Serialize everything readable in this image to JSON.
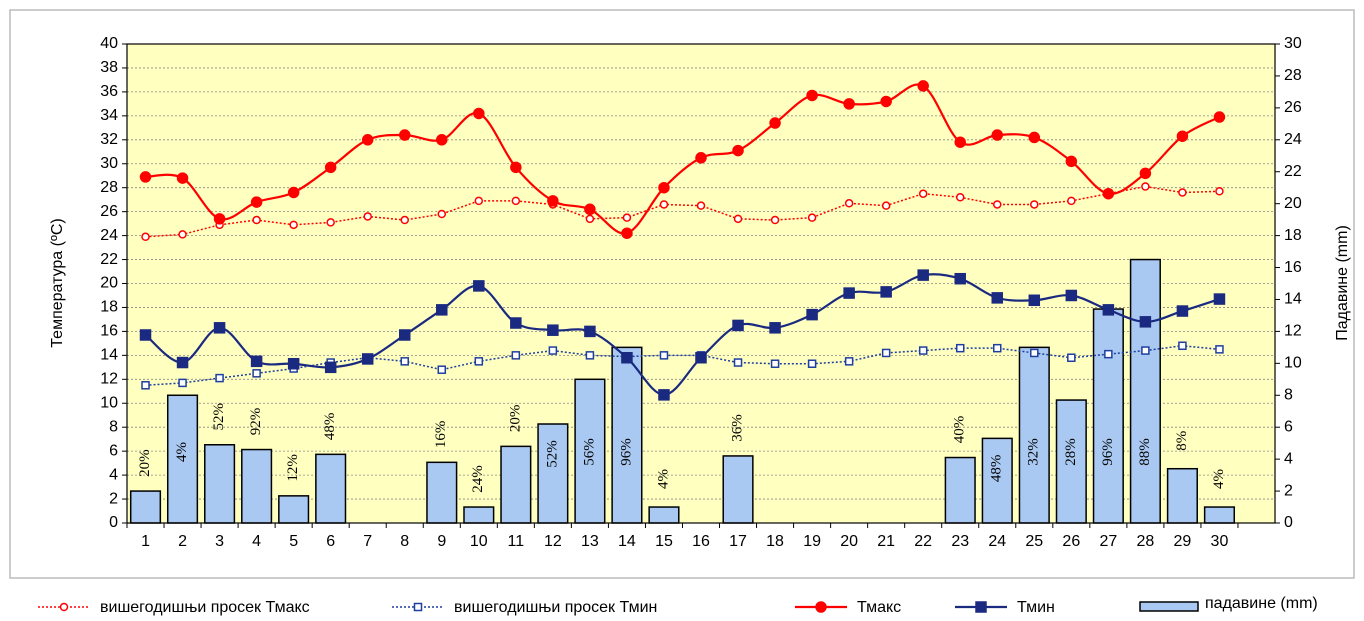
{
  "chart_data": {
    "type": "combo",
    "categories": [
      1,
      2,
      3,
      4,
      5,
      6,
      7,
      8,
      9,
      10,
      11,
      12,
      13,
      14,
      15,
      16,
      17,
      18,
      19,
      20,
      21,
      22,
      23,
      24,
      25,
      26,
      27,
      28,
      29,
      30,
      null
    ],
    "ylabel": "Температура (ºC)",
    "y2label": "Падавине (mm)",
    "ylim": [
      0,
      40
    ],
    "yticks": [
      0,
      2,
      4,
      6,
      8,
      10,
      12,
      14,
      16,
      18,
      20,
      22,
      24,
      26,
      28,
      30,
      32,
      34,
      36,
      38,
      40
    ],
    "y2lim": [
      0,
      30
    ],
    "y2ticks": [
      0,
      2,
      4,
      6,
      8,
      10,
      12,
      14,
      16,
      18,
      20,
      22,
      24,
      26,
      28,
      30
    ],
    "grid": true,
    "legend": "bottom",
    "series": [
      {
        "name": "вишегодишњи просек Тмакс",
        "kind": "line",
        "color": "#ff0000",
        "dash": true,
        "smooth": false,
        "marker": "circle-open",
        "values": [
          23.9,
          24.1,
          24.9,
          25.3,
          24.9,
          25.1,
          25.6,
          25.3,
          25.8,
          26.9,
          26.9,
          26.6,
          25.4,
          25.5,
          26.6,
          26.5,
          25.4,
          25.3,
          25.5,
          26.7,
          26.5,
          27.5,
          27.2,
          26.6,
          26.6,
          26.9,
          27.5,
          28.1,
          27.6,
          27.7,
          null
        ]
      },
      {
        "name": "вишегодишњи просек Тмин",
        "kind": "line",
        "color": "#1f3f9f",
        "dash": true,
        "smooth": false,
        "marker": "square-open",
        "values": [
          11.5,
          11.7,
          12.1,
          12.5,
          12.9,
          13.4,
          13.8,
          13.5,
          12.8,
          13.5,
          14.0,
          14.4,
          14.0,
          13.9,
          14.0,
          14.0,
          13.4,
          13.3,
          13.3,
          13.5,
          14.2,
          14.4,
          14.6,
          14.6,
          14.2,
          13.8,
          14.1,
          14.4,
          14.8,
          14.5,
          null
        ]
      },
      {
        "name": "Тмакс",
        "kind": "line",
        "color": "#ff0000",
        "dash": false,
        "smooth": true,
        "marker": "circle",
        "values": [
          28.9,
          28.8,
          25.4,
          26.8,
          27.6,
          29.7,
          32.0,
          32.4,
          32.0,
          34.2,
          29.7,
          26.9,
          26.2,
          24.2,
          28.0,
          30.5,
          31.1,
          33.4,
          35.7,
          35.0,
          35.2,
          36.5,
          31.8,
          32.4,
          32.2,
          30.2,
          27.5,
          29.2,
          32.3,
          33.9,
          null
        ]
      },
      {
        "name": "Тмин",
        "kind": "line",
        "color": "#1a2a80",
        "dash": false,
        "smooth": true,
        "marker": "square",
        "values": [
          15.7,
          13.4,
          16.3,
          13.5,
          13.3,
          13.0,
          13.7,
          15.7,
          17.8,
          19.8,
          16.7,
          16.1,
          16.0,
          13.8,
          10.7,
          13.8,
          16.5,
          16.3,
          17.4,
          19.2,
          19.3,
          20.7,
          20.4,
          18.8,
          18.6,
          19.0,
          17.8,
          16.8,
          17.7,
          18.7,
          null
        ]
      },
      {
        "name": "падавине (mm)",
        "kind": "bar",
        "axis": "y2",
        "color": "#a9c9f2",
        "values": [
          2.0,
          8.0,
          4.9,
          4.6,
          1.7,
          4.3,
          0,
          0,
          3.8,
          1.0,
          4.8,
          6.2,
          9.0,
          11.0,
          1.0,
          0,
          4.2,
          0,
          0,
          0,
          0,
          0,
          4.1,
          5.3,
          11.0,
          7.7,
          13.4,
          16.5,
          3.4,
          1.0,
          null
        ],
        "annotations": [
          "20%",
          "4%",
          "52%",
          "92%",
          "12%",
          "48%",
          null,
          null,
          "16%",
          "24%",
          "20%",
          "52%",
          "56%",
          "96%",
          "4%",
          null,
          "36%",
          null,
          null,
          null,
          null,
          null,
          "40%",
          "48%",
          "32%",
          "28%",
          "96%",
          "88%",
          "8%",
          "4%",
          null,
          null
        ]
      }
    ]
  }
}
